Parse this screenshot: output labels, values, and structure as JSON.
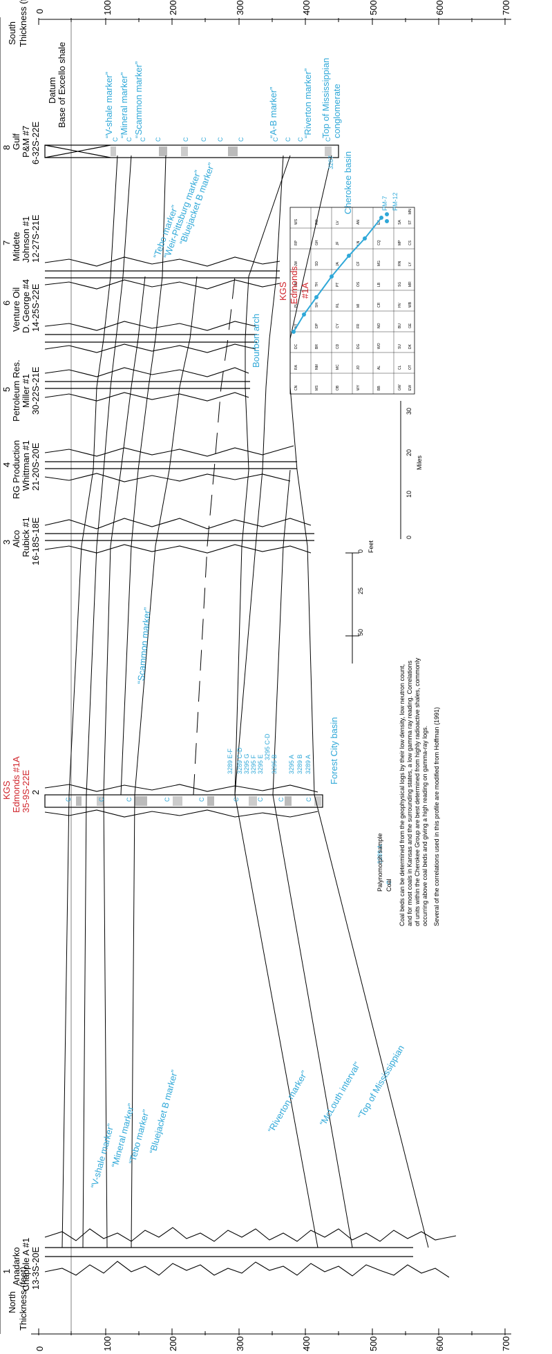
{
  "axes": {
    "north_label": "North",
    "south_label": "South",
    "thickness_label": "Thickness (feet)",
    "ticks": [
      "0",
      "100",
      "200",
      "300",
      "400",
      "500",
      "600",
      "700"
    ]
  },
  "datum": {
    "title": "Datum",
    "subtitle": "Base of Excello shale"
  },
  "wells": [
    {
      "number": "1",
      "operator": "Anadarko",
      "name": "Chapple A #1",
      "location": "13-3S-20E"
    },
    {
      "number": "2",
      "operator": "KGS",
      "name": "Edmonds #1A",
      "location": "35-9S-22E"
    },
    {
      "number": "3",
      "operator": "Alco",
      "name": "Rubick #1",
      "location": "16-18S-18E"
    },
    {
      "number": "4",
      "operator": "RG Production",
      "name": "Whittman #1",
      "location": "21-20S-20E"
    },
    {
      "number": "5",
      "operator": "Petroleum Res.",
      "name": "Miller #1",
      "location": "30-22S-21E"
    },
    {
      "number": "6",
      "operator": "Venture Oil",
      "name": "D. George #4",
      "location": "14-25S-22E"
    },
    {
      "number": "7",
      "operator": "Mitdete",
      "name": "Johnson #1",
      "location": "12-27S-21E"
    },
    {
      "number": "8",
      "operator": "Gulf",
      "name": "P&M #7",
      "location": "6-32S-22E"
    }
  ],
  "markers_left": [
    "“V-shale marker”",
    "“Mineral marker”",
    "“Tebo marker”",
    "“Bluejacket B marker”",
    "“Riverton marker”",
    "“McLouth interval”",
    "“Top of Mississippian"
  ],
  "markers_mid": [
    "“Scammon marker”",
    "“Tebo marker”",
    "“Weir-Pittsburg marker”",
    "“Bluejacket B marker”"
  ],
  "markers_right": [
    "“V-shale marker”",
    "“Mineral marker”",
    "“Scammon marker”",
    "“A-B marker”",
    "“Riverton marker”",
    "Top of Mississippian",
    "conglomerate"
  ],
  "samples": [
    "3289 E-F",
    "3289 C-D",
    "3295 G",
    "3295 F",
    "3295 E",
    "3295 C-D",
    "3295 B",
    "3295 A",
    "3289 B",
    "3289 A"
  ],
  "sample_right": "3287",
  "coal_symbol": "C",
  "basins": {
    "forest_city": "Forest City basin",
    "bourbon": "Bourbon arch",
    "cherokee": "Cherokee basin"
  },
  "legend": {
    "sample_code": "3289 A",
    "sample_label": "Palynomorph sample",
    "coal_code": "C",
    "coal_label": "Coal"
  },
  "scale": {
    "miles_label": "Miles",
    "miles_ticks": [
      "0",
      "10",
      "20",
      "30"
    ],
    "feet_label": "Feet",
    "feet_ticks": [
      "0",
      "25",
      "50"
    ]
  },
  "note_lines": [
    "Coal beds can be determined from the geophysical logs by their low density, low neutron count,",
    "and for most coals in Kansas and the surrounding states, a low gamma ray reading. Correlations",
    "of units within the Cherokee Group are best determined from highly radioactive shales, commonly",
    "occurring above coal beds and giving a high reading on gamma-ray logs."
  ],
  "credit": "Several of the correlations used in this profile are modified from Hoffman (1991)",
  "map": {
    "kgs": "KGS",
    "edmonds": "Edmonds",
    "edmonds_no": "#1A",
    "pm7": "PM-7",
    "pm12": "PM-12",
    "counties": [
      "CN",
      "RA",
      "DC",
      "NT",
      "PL",
      "SM",
      "JW",
      "RP",
      "WS",
      "MS",
      "NM",
      "BR",
      "DP",
      "SH",
      "TH",
      "SD",
      "GH",
      "RO",
      "OB",
      "MC",
      "CD",
      "CY",
      "RL",
      "PT",
      "JA",
      "JF",
      "LV",
      "WY",
      "JO",
      "DG",
      "FR",
      "MI",
      "OS",
      "CF",
      "LN",
      "AN",
      "BB",
      "AL",
      "WO",
      "NO",
      "CR",
      "LB",
      "MG",
      "CQ",
      "EK",
      "GW",
      "CL",
      "SU",
      "BU",
      "HV",
      "SG",
      "RN",
      "MP",
      "SA",
      "EW",
      "OT",
      "DK",
      "GE",
      "WB",
      "MR",
      "LY",
      "CS",
      "ST",
      "MN"
    ]
  }
}
